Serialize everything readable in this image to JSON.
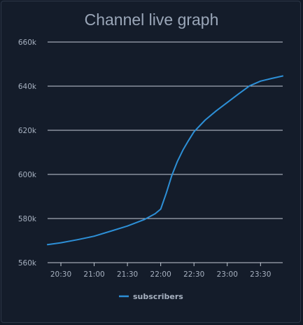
{
  "chart_data": {
    "type": "line",
    "title": "Channel live graph",
    "xlabel": "",
    "ylabel": "",
    "ylim": [
      560000,
      660000
    ],
    "xlim": [
      "20:18",
      "23:50"
    ],
    "y_ticks": [
      {
        "value": 560000,
        "label": "560k"
      },
      {
        "value": 580000,
        "label": "580k"
      },
      {
        "value": 600000,
        "label": "600k"
      },
      {
        "value": 620000,
        "label": "620k"
      },
      {
        "value": 640000,
        "label": "640k"
      },
      {
        "value": 660000,
        "label": "660k"
      }
    ],
    "x_ticks": [
      "20:30",
      "21:00",
      "21:30",
      "22:00",
      "22:30",
      "23:00",
      "23:30"
    ],
    "grid": "horizontal",
    "legend_position": "bottom",
    "series": [
      {
        "name": "subscribers",
        "color": "#2d8fd6",
        "x": [
          "20:18",
          "20:30",
          "20:45",
          "21:00",
          "21:15",
          "21:30",
          "21:45",
          "21:55",
          "22:00",
          "22:05",
          "22:10",
          "22:15",
          "22:20",
          "22:25",
          "22:30",
          "22:40",
          "22:50",
          "23:00",
          "23:10",
          "23:20",
          "23:30",
          "23:40",
          "23:50"
        ],
        "y": [
          568200,
          569000,
          570400,
          572000,
          574300,
          576600,
          579500,
          582200,
          584300,
          591500,
          599500,
          605800,
          611000,
          615300,
          619300,
          624600,
          628800,
          632600,
          636400,
          640100,
          642300,
          643500,
          644600
        ]
      }
    ]
  }
}
